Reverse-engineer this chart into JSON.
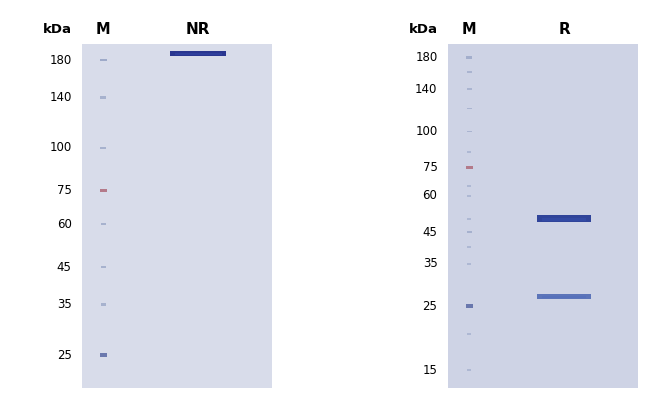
{
  "white_bg": "#ffffff",
  "gel_bg_NR": "#d8dcea",
  "gel_bg_R": "#ced3e5",
  "panels": [
    {
      "label": "NR",
      "kda_labels": [
        180,
        140,
        100,
        75,
        60,
        45,
        35,
        25
      ],
      "kda_min": 20,
      "kda_max": 200,
      "marker_bands": [
        {
          "kda": 180,
          "color": "#8090b8",
          "bw": 0.035,
          "bh": 0.008,
          "alpha": 0.65
        },
        {
          "kda": 140,
          "color": "#8090b8",
          "bw": 0.03,
          "bh": 0.007,
          "alpha": 0.55
        },
        {
          "kda": 100,
          "color": "#8090b8",
          "bw": 0.03,
          "bh": 0.007,
          "alpha": 0.55
        },
        {
          "kda": 75,
          "color": "#b07080",
          "bw": 0.038,
          "bh": 0.009,
          "alpha": 0.9
        },
        {
          "kda": 60,
          "color": "#8090b8",
          "bw": 0.028,
          "bh": 0.007,
          "alpha": 0.55
        },
        {
          "kda": 45,
          "color": "#8090b8",
          "bw": 0.028,
          "bh": 0.007,
          "alpha": 0.55
        },
        {
          "kda": 35,
          "color": "#8090b8",
          "bw": 0.025,
          "bh": 0.007,
          "alpha": 0.55
        },
        {
          "kda": 25,
          "color": "#5060a0",
          "bw": 0.038,
          "bh": 0.012,
          "alpha": 0.8
        }
      ],
      "sample_bands": [
        {
          "kda": 188,
          "color": "#1a2888",
          "bw": 0.38,
          "bh": 0.013,
          "alpha": 0.92
        }
      ]
    },
    {
      "label": "R",
      "kda_labels": [
        180,
        140,
        100,
        75,
        60,
        45,
        35,
        25,
        15
      ],
      "kda_min": 13,
      "kda_max": 200,
      "marker_bands": [
        {
          "kda": 180,
          "color": "#8090b8",
          "bw": 0.03,
          "bh": 0.006,
          "alpha": 0.55
        },
        {
          "kda": 160,
          "color": "#8090b8",
          "bw": 0.025,
          "bh": 0.005,
          "alpha": 0.45
        },
        {
          "kda": 140,
          "color": "#8090b8",
          "bw": 0.025,
          "bh": 0.005,
          "alpha": 0.45
        },
        {
          "kda": 120,
          "color": "#8090b8",
          "bw": 0.025,
          "bh": 0.005,
          "alpha": 0.45
        },
        {
          "kda": 100,
          "color": "#8090b8",
          "bw": 0.025,
          "bh": 0.005,
          "alpha": 0.45
        },
        {
          "kda": 85,
          "color": "#8090b8",
          "bw": 0.022,
          "bh": 0.005,
          "alpha": 0.4
        },
        {
          "kda": 75,
          "color": "#b07080",
          "bw": 0.038,
          "bh": 0.009,
          "alpha": 0.9
        },
        {
          "kda": 65,
          "color": "#8090b8",
          "bw": 0.022,
          "bh": 0.005,
          "alpha": 0.4
        },
        {
          "kda": 60,
          "color": "#8090b8",
          "bw": 0.022,
          "bh": 0.005,
          "alpha": 0.4
        },
        {
          "kda": 50,
          "color": "#8090b8",
          "bw": 0.022,
          "bh": 0.005,
          "alpha": 0.4
        },
        {
          "kda": 45,
          "color": "#8090b8",
          "bw": 0.028,
          "bh": 0.007,
          "alpha": 0.5
        },
        {
          "kda": 40,
          "color": "#8090b8",
          "bw": 0.022,
          "bh": 0.005,
          "alpha": 0.4
        },
        {
          "kda": 35,
          "color": "#8090b8",
          "bw": 0.022,
          "bh": 0.005,
          "alpha": 0.4
        },
        {
          "kda": 25,
          "color": "#5060a0",
          "bw": 0.038,
          "bh": 0.012,
          "alpha": 0.8
        },
        {
          "kda": 20,
          "color": "#8090b8",
          "bw": 0.022,
          "bh": 0.005,
          "alpha": 0.4
        },
        {
          "kda": 15,
          "color": "#8090b8",
          "bw": 0.022,
          "bh": 0.005,
          "alpha": 0.4
        }
      ],
      "sample_bands": [
        {
          "kda": 50,
          "color": "#1a3090",
          "bw": 0.36,
          "bh": 0.018,
          "alpha": 0.88
        },
        {
          "kda": 27,
          "color": "#3050a8",
          "bw": 0.36,
          "bh": 0.013,
          "alpha": 0.72
        }
      ]
    }
  ],
  "font_size_kda_labels": 8.5,
  "font_size_col_header": 10.5,
  "font_size_kda_unit": 9.5
}
